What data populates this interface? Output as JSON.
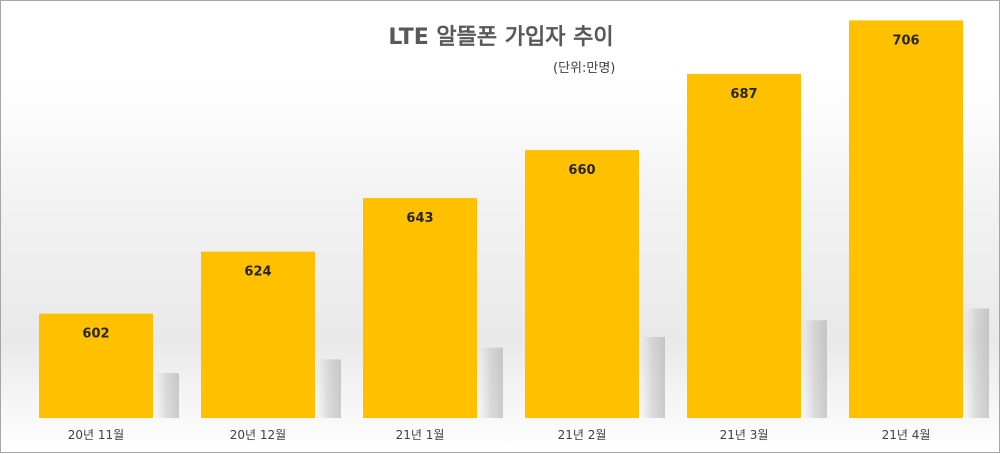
{
  "chart_data": {
    "type": "bar",
    "title": "LTE 알뜰폰 가입자 추이",
    "unit_label": "(단위:만명)",
    "categories": [
      "20년 11월",
      "20년 12월",
      "21년 1월",
      "21년 2월",
      "21년 3월",
      "21년 4월"
    ],
    "values": [
      602,
      624,
      643,
      660,
      687,
      706
    ],
    "data_labels": [
      "602",
      "624",
      "643",
      "660",
      "687",
      "706"
    ],
    "bar_color": "#FFC000",
    "grid": false,
    "legend": "none"
  }
}
